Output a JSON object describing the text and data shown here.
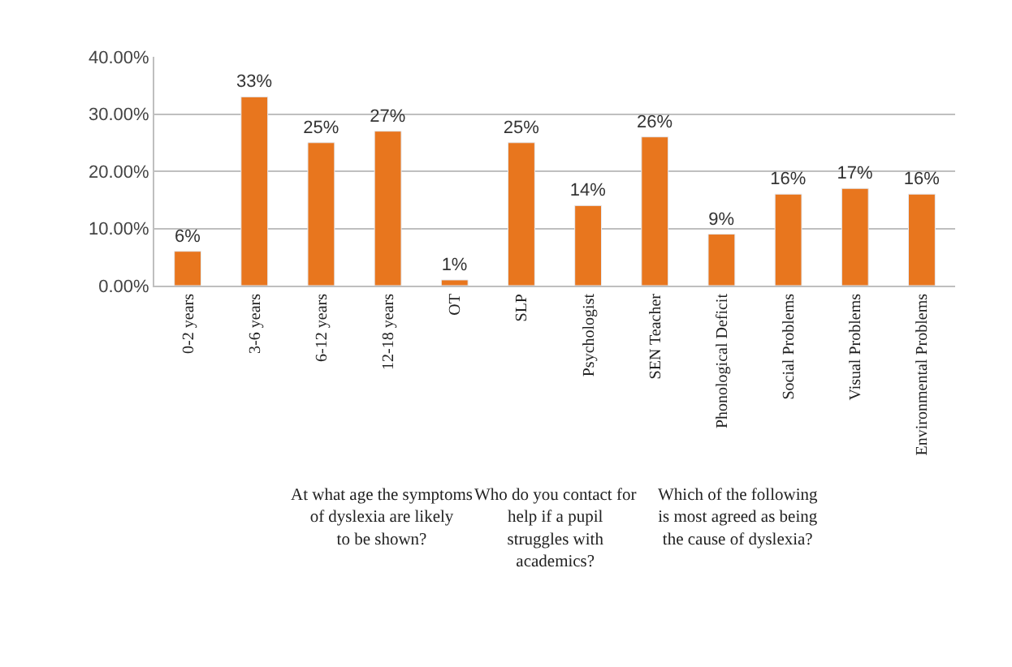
{
  "chart_data": {
    "type": "bar",
    "categories": [
      "0-2 years",
      "3-6 years",
      "6-12 years",
      "12-18 years",
      "OT",
      "SLP",
      "Psychologist",
      "SEN Teacher",
      "Phonological Deficit",
      "Social Problems",
      "Visual Problems",
      "Environmental Problems"
    ],
    "values": [
      6,
      33,
      25,
      27,
      1,
      25,
      14,
      26,
      9,
      16,
      17,
      16
    ],
    "value_labels": [
      "6%",
      "33%",
      "25%",
      "27%",
      "1%",
      "25%",
      "14%",
      "26%",
      "9%",
      "16%",
      "17%",
      "16%"
    ],
    "color": "#e8761e",
    "ylim": [
      0,
      40
    ],
    "yticks": [
      {
        "value": 0,
        "label": "0.00%"
      },
      {
        "value": 10,
        "label": "10.00%"
      },
      {
        "value": 20,
        "label": "20.00%"
      },
      {
        "value": 30,
        "label": "30.00%"
      },
      {
        "value": 40,
        "label": "40.00%"
      }
    ],
    "grid": "y",
    "legend": false,
    "annotations": [
      "At what age the symptoms of dyslexia are likely to be shown?",
      "Who do you contact for help if a pupil struggles with academics?",
      "Which of the following is most agreed as being the cause of dyslexia?"
    ]
  }
}
